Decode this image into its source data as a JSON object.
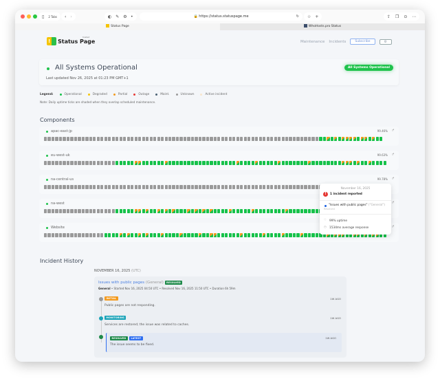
{
  "browser": {
    "tabs_count": "2 Tabs",
    "url": "https://status.statuspage.me",
    "tabs": [
      {
        "label": "Status Page",
        "active": true
      },
      {
        "label": "WhoHosts.pro Status",
        "active": false
      }
    ]
  },
  "header": {
    "logo_text": "Status Page",
    "logo_hosted": "hosted",
    "nav": {
      "maintenance": "Maintenance",
      "incidents": "Incidents",
      "subscribe": "Subscribe",
      "settings_icon": "gear-icon"
    }
  },
  "status": {
    "title": "All Systems Operational",
    "updated": "Last updated Nov 26, 2025 at 01:23 PM GMT+1",
    "badge": "All Systems Operational",
    "color": "#1fc24c"
  },
  "legend": {
    "label": "Legend:",
    "items": [
      {
        "label": "Operational",
        "color": "#16c24a"
      },
      {
        "label": "Degraded",
        "color": "#f5c400"
      },
      {
        "label": "Partial",
        "color": "#f39a1e"
      },
      {
        "label": "Outage",
        "color": "#e53935"
      },
      {
        "label": "Maint.",
        "color": "#4a6073"
      },
      {
        "label": "Unknown",
        "color": "#9a9a9a"
      },
      {
        "label": "Active incident",
        "color": "#f8e6cc"
      }
    ],
    "note": "Note: Daily uptime ticks are shaded when they overlap scheduled maintenance."
  },
  "components_title": "Components",
  "components": [
    {
      "name": "apac-east-jp",
      "uptime": "99.46%",
      "ticks": "uuuuuuuuuuuuuuuuuuuuuuuuuuuuuuuuuuuuuuuuuuuuuuuuuuuuuuuuuuuuuuuuuuuuuuuuuoopopoppppoppopoo"
    },
    {
      "name": "eu-west-uk",
      "uptime": "99.63%",
      "ticks": "uuuuuuuuuuuuuuuuuuuoooooppoooooopoooooooooooooooooopoooopooooopooooooopoooooooopppopoopoooo"
    },
    {
      "name": "na-central-us",
      "uptime": "99.78%",
      "ticks": "uuuuuuuuuuuuuuuuuuuuuuuuuuuuuuuuuuuuuuuuuuuuuuuuuuuuuuuuuuuuuuuuuuuuuuuuuuuuuuuuuuuuuuoo"
    },
    {
      "name": "na-west",
      "uptime": "",
      "ticks": "uuuuuuuuuuuuuuuuuuuoooooppopoopopopooopopopopoooopooooopoooooooopoooooooooooooopoooooooopoo"
    },
    {
      "name": "Website",
      "uptime": "",
      "ticks": "uuuuuuuuuuuuuuuuoooopopoopopooopoooopoooopooppoooooopooooopoooopoooopoooooopopppooppopoppoo"
    }
  ],
  "tooltip": {
    "date": "November 16, 2025",
    "incidents": "1 incident reported",
    "incident_title": "\"Issues with public pages\"",
    "incident_group": "(\"General\")",
    "incident_status": "Resolved",
    "uptime": "99% uptime",
    "response": "1534ms average response"
  },
  "history": {
    "title": "Incident History",
    "date": "NOVEMBER 16, 2025",
    "tz": "(UTC)",
    "incident": {
      "title": "Issues with public pages",
      "group": "(General)",
      "badge": "RESOLVED",
      "meta_group": "General",
      "meta": " • Started Nov 16, 2025 04:50 UTC • Resolved Nov 16, 2025 11:50 UTC • Duration 6h 59m",
      "updates": [
        {
          "status": "INITIAL",
          "color": "#f39a1e",
          "text": "Public pages are not responding.",
          "ago": "1W AGO"
        },
        {
          "status": "MONITORING",
          "color": "#1aa3b8",
          "text": "Services are restored; the issue was related to caches.",
          "ago": "1W AGO"
        },
        {
          "status": "RESOLVED",
          "latest": "LATEST",
          "color": "#1e8a4a",
          "text": "The issue seems to be fixed.",
          "ago": "1W AGO"
        }
      ]
    }
  }
}
